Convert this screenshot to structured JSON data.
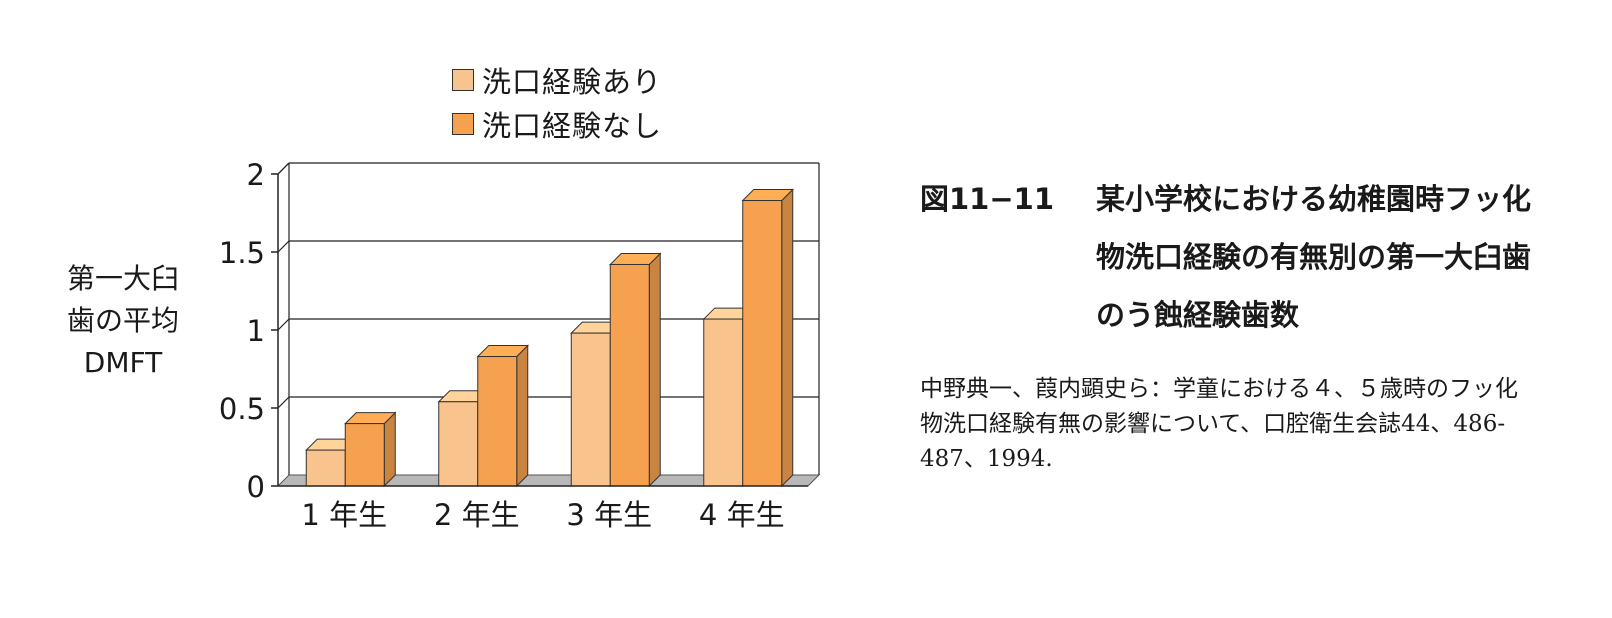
{
  "chart_data": {
    "type": "bar",
    "categories": [
      "1 年生",
      "2 年生",
      "3 年生",
      "4 年生"
    ],
    "series": [
      {
        "name": "洗口経験あり",
        "values": [
          0.23,
          0.54,
          0.98,
          1.07
        ],
        "color": "#f9c38e"
      },
      {
        "name": "洗口経験なし",
        "values": [
          0.4,
          0.83,
          1.42,
          1.83
        ],
        "color": "#f5a14f"
      }
    ],
    "ylabel": "第一大臼\n歯の平均\nDMFT",
    "xlabel": "",
    "ylim": [
      0,
      2
    ],
    "yticks": [
      "0",
      "0.5",
      "1",
      "1.5",
      "2"
    ],
    "ytick_values": [
      0,
      0.5,
      1,
      1.5,
      2
    ],
    "grid": true,
    "legend_position": "top",
    "style": "3d"
  },
  "caption": {
    "figure_number": "図11−11",
    "title": "某小学校における幼稚園時フッ化物洗口経験の有無別の第一大臼歯のう蝕経験歯数"
  },
  "reference": "中野典一、葭内顕史ら：学童における４、５歳時のフッ化物洗口経験有無の影響について、口腔衛生会誌44、486-487、1994."
}
